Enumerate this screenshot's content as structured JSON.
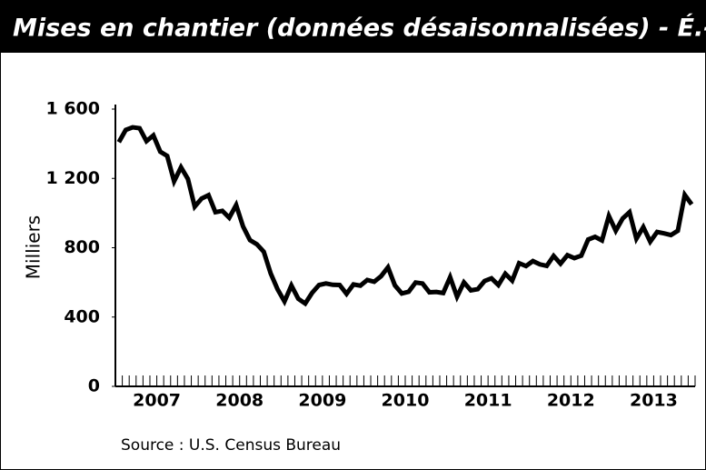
{
  "chart_data": {
    "type": "line",
    "title": "Mises en chantier (données désaisonnalisées) - É.-U.",
    "y_label": "Milliers",
    "source": "Source : U.S. Census Bureau",
    "categories": [
      "2007",
      null,
      null,
      null,
      null,
      null,
      null,
      null,
      null,
      null,
      null,
      null,
      "2008",
      null,
      null,
      null,
      null,
      null,
      null,
      null,
      null,
      null,
      null,
      null,
      "2009",
      null,
      null,
      null,
      null,
      null,
      null,
      null,
      null,
      null,
      null,
      null,
      "2010",
      null,
      null,
      null,
      null,
      null,
      null,
      null,
      null,
      null,
      null,
      null,
      "2011",
      null,
      null,
      null,
      null,
      null,
      null,
      null,
      null,
      null,
      null,
      null,
      "2012",
      null,
      null,
      null,
      null,
      null,
      null,
      null,
      null,
      null,
      null,
      null,
      "2013",
      null,
      null,
      null,
      null,
      null,
      null,
      null,
      null,
      null,
      null,
      null
    ],
    "values": [
      1409,
      1480,
      1495,
      1490,
      1415,
      1448,
      1354,
      1330,
      1183,
      1264,
      1197,
      1037,
      1084,
      1103,
      1005,
      1013,
      973,
      1046,
      923,
      844,
      820,
      777,
      652,
      560,
      490,
      582,
      505,
      478,
      540,
      585,
      594,
      586,
      585,
      534,
      588,
      581,
      614,
      604,
      636,
      687,
      583,
      536,
      546,
      599,
      594,
      543,
      545,
      539,
      630,
      517,
      600,
      554,
      561,
      608,
      623,
      585,
      650,
      610,
      711,
      694,
      723,
      704,
      695,
      753,
      708,
      757,
      740,
      754,
      847,
      863,
      842,
      983,
      898,
      969,
      1005,
      852,
      919,
      835,
      891,
      883,
      873,
      898,
      1105,
      1050
    ],
    "color": "#000000",
    "ylim": [
      0,
      1600
    ],
    "yticks": [
      0,
      400,
      800,
      {
        "value": 1200,
        "label": "1 200"
      },
      {
        "value": 1600,
        "label": "1 600"
      }
    ]
  }
}
